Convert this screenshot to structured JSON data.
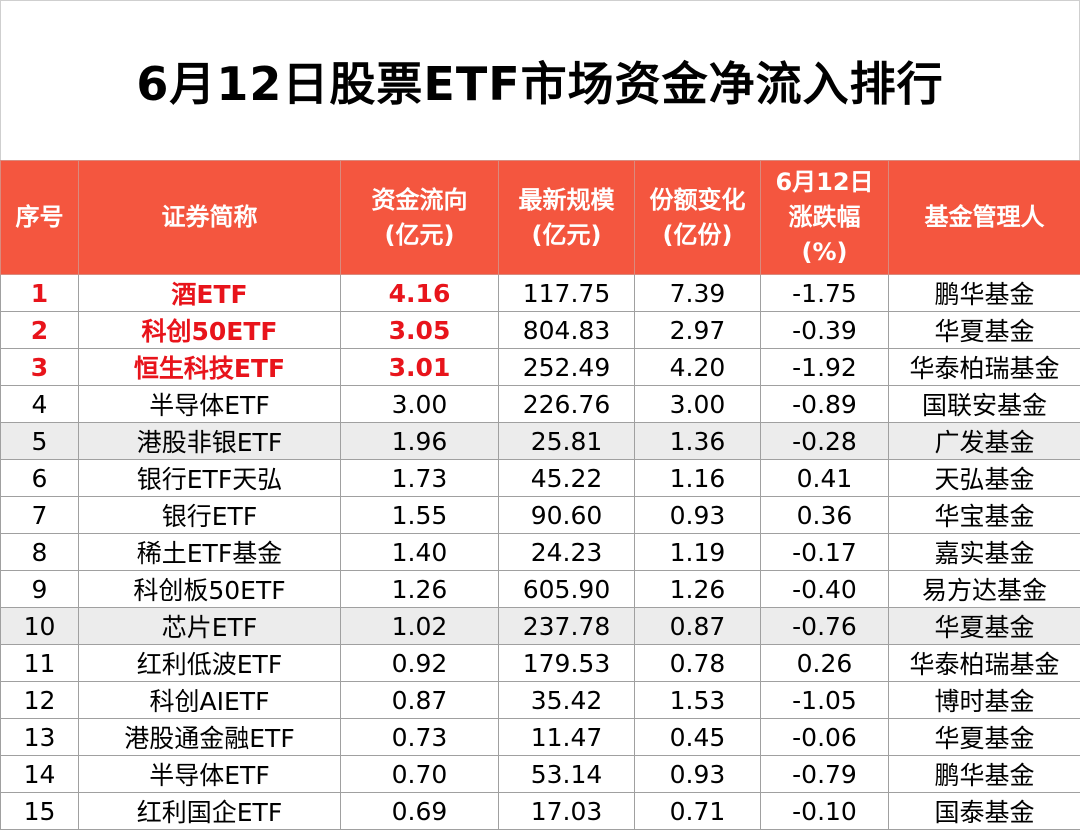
{
  "title": "6月12日股票ETF市场资金净流入排行",
  "colors": {
    "header_bg": "#f4563f",
    "highlight_text": "#e8141b",
    "shaded_row": "#ececec"
  },
  "columns": [
    "序号",
    "证券简称",
    "资金流向\n(亿元)",
    "最新规模\n(亿元)",
    "份额变化\n(亿份)",
    "6月12日\n涨跌幅\n(%)",
    "基金管理人"
  ],
  "rows": [
    {
      "rank": "1",
      "name": "酒ETF",
      "flow": "4.16",
      "scale": "117.75",
      "share_change": "7.39",
      "pct": "-1.75",
      "manager": "鹏华基金",
      "top": true,
      "shade": false
    },
    {
      "rank": "2",
      "name": "科创50ETF",
      "flow": "3.05",
      "scale": "804.83",
      "share_change": "2.97",
      "pct": "-0.39",
      "manager": "华夏基金",
      "top": true,
      "shade": false
    },
    {
      "rank": "3",
      "name": "恒生科技ETF",
      "flow": "3.01",
      "scale": "252.49",
      "share_change": "4.20",
      "pct": "-1.92",
      "manager": "华泰柏瑞基金",
      "top": true,
      "shade": false
    },
    {
      "rank": "4",
      "name": "半导体ETF",
      "flow": "3.00",
      "scale": "226.76",
      "share_change": "3.00",
      "pct": "-0.89",
      "manager": "国联安基金",
      "top": false,
      "shade": false
    },
    {
      "rank": "5",
      "name": "港股非银ETF",
      "flow": "1.96",
      "scale": "25.81",
      "share_change": "1.36",
      "pct": "-0.28",
      "manager": "广发基金",
      "top": false,
      "shade": true
    },
    {
      "rank": "6",
      "name": "银行ETF天弘",
      "flow": "1.73",
      "scale": "45.22",
      "share_change": "1.16",
      "pct": "0.41",
      "manager": "天弘基金",
      "top": false,
      "shade": false
    },
    {
      "rank": "7",
      "name": "银行ETF",
      "flow": "1.55",
      "scale": "90.60",
      "share_change": "0.93",
      "pct": "0.36",
      "manager": "华宝基金",
      "top": false,
      "shade": false
    },
    {
      "rank": "8",
      "name": "稀土ETF基金",
      "flow": "1.40",
      "scale": "24.23",
      "share_change": "1.19",
      "pct": "-0.17",
      "manager": "嘉实基金",
      "top": false,
      "shade": false
    },
    {
      "rank": "9",
      "name": "科创板50ETF",
      "flow": "1.26",
      "scale": "605.90",
      "share_change": "1.26",
      "pct": "-0.40",
      "manager": "易方达基金",
      "top": false,
      "shade": false
    },
    {
      "rank": "10",
      "name": "芯片ETF",
      "flow": "1.02",
      "scale": "237.78",
      "share_change": "0.87",
      "pct": "-0.76",
      "manager": "华夏基金",
      "top": false,
      "shade": true
    },
    {
      "rank": "11",
      "name": "红利低波ETF",
      "flow": "0.92",
      "scale": "179.53",
      "share_change": "0.78",
      "pct": "0.26",
      "manager": "华泰柏瑞基金",
      "top": false,
      "shade": false
    },
    {
      "rank": "12",
      "name": "科创AIETF",
      "flow": "0.87",
      "scale": "35.42",
      "share_change": "1.53",
      "pct": "-1.05",
      "manager": "博时基金",
      "top": false,
      "shade": false
    },
    {
      "rank": "13",
      "name": "港股通金融ETF",
      "flow": "0.73",
      "scale": "11.47",
      "share_change": "0.45",
      "pct": "-0.06",
      "manager": "华夏基金",
      "top": false,
      "shade": false
    },
    {
      "rank": "14",
      "name": "半导体ETF",
      "flow": "0.70",
      "scale": "53.14",
      "share_change": "0.93",
      "pct": "-0.79",
      "manager": "鹏华基金",
      "top": false,
      "shade": false
    },
    {
      "rank": "15",
      "name": "红利国企ETF",
      "flow": "0.69",
      "scale": "17.03",
      "share_change": "0.71",
      "pct": "-0.10",
      "manager": "国泰基金",
      "top": false,
      "shade": false
    }
  ]
}
